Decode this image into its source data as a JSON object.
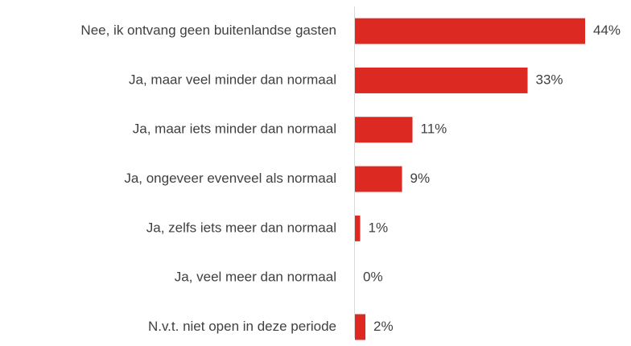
{
  "chart_data": {
    "type": "bar",
    "orientation": "horizontal",
    "categories": [
      "Nee, ik ontvang geen buitenlandse gasten",
      "Ja, maar veel minder dan normaal",
      "Ja, maar iets minder dan normaal",
      "Ja, ongeveer evenveel als normaal",
      "Ja, zelfs iets meer dan normaal",
      "Ja, veel meer dan normaal",
      "N.v.t. niet open in deze periode"
    ],
    "values": [
      44,
      33,
      11,
      9,
      1,
      0,
      2
    ],
    "value_labels": [
      "44%",
      "33%",
      "11%",
      "9%",
      "1%",
      "0%",
      "2%"
    ],
    "color": "#dc2a22"
  }
}
